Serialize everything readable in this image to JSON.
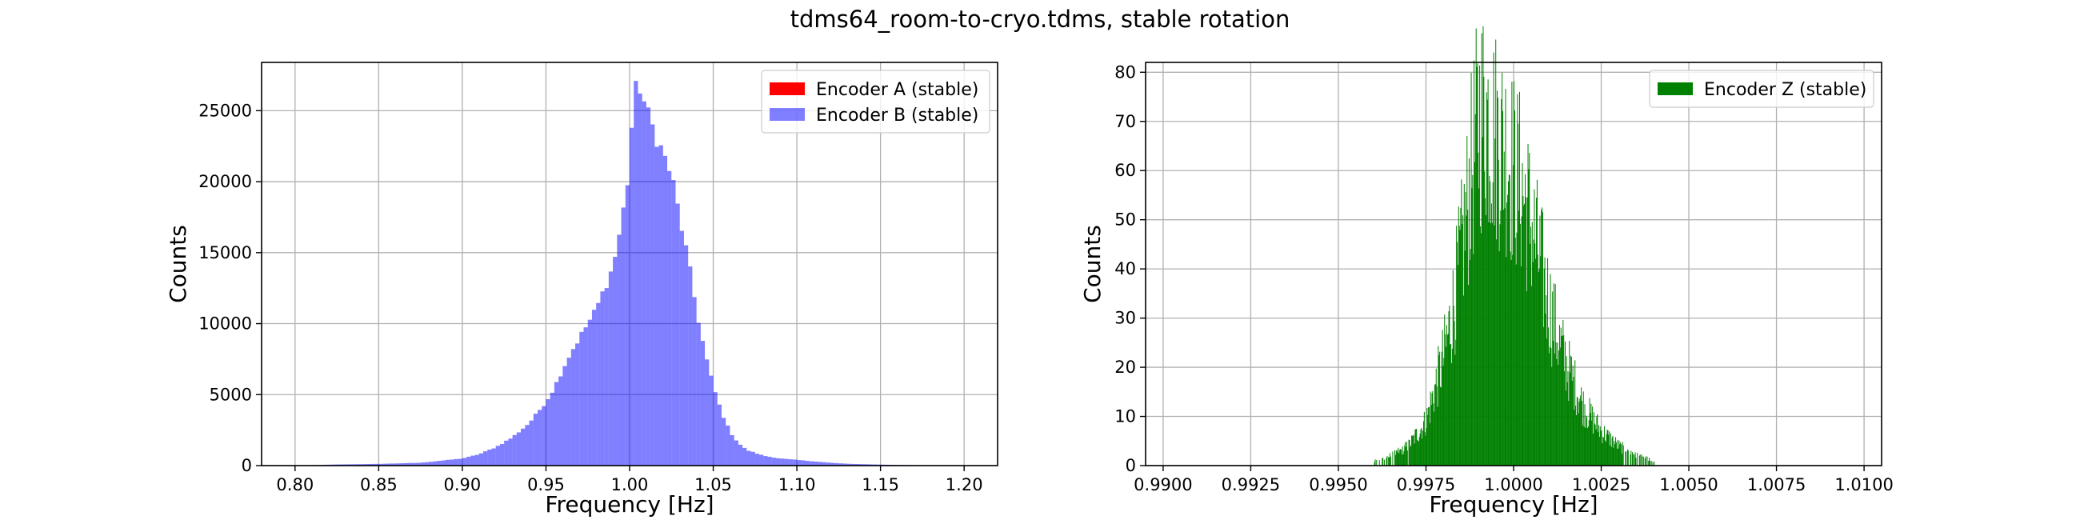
{
  "figure": {
    "title": "tdms64_room-to-cryo.tdms, stable rotation"
  },
  "chart_data": [
    {
      "type": "bar",
      "xlabel": "Frequency [Hz]",
      "ylabel": "Counts",
      "xlim": [
        0.78,
        1.22
      ],
      "ylim": [
        0,
        28400
      ],
      "xticks": [
        0.8,
        0.85,
        0.9,
        0.95,
        1.0,
        1.05,
        1.1,
        1.15,
        1.2
      ],
      "xtick_labels": [
        "0.80",
        "0.85",
        "0.90",
        "0.95",
        "1.00",
        "1.05",
        "1.10",
        "1.15",
        "1.20"
      ],
      "yticks": [
        0,
        5000,
        10000,
        15000,
        20000,
        25000
      ],
      "ytick_labels": [
        "0",
        "5000",
        "10000",
        "15000",
        "20000",
        "25000"
      ],
      "grid": true,
      "legend_position": "top-right",
      "bin_width": 0.0025,
      "series": [
        {
          "name": "Encoder A (stable)",
          "color": "#ff0000",
          "opacity": 1.0,
          "x": [],
          "values": []
        },
        {
          "name": "Encoder B (stable)",
          "color": "#0000ff",
          "opacity": 0.5,
          "x": [
            0.8,
            0.825,
            0.85,
            0.875,
            0.9,
            0.91,
            0.92,
            0.93,
            0.94,
            0.95,
            0.955,
            0.96,
            0.965,
            0.97,
            0.975,
            0.98,
            0.985,
            0.99,
            0.995,
            1.0,
            1.002,
            1.005,
            1.007,
            1.01,
            1.015,
            1.02,
            1.025,
            1.03,
            1.035,
            1.04,
            1.045,
            1.05,
            1.055,
            1.06,
            1.065,
            1.07,
            1.08,
            1.09,
            1.1,
            1.11,
            1.12,
            1.13,
            1.14,
            1.15,
            1.16,
            1.17,
            1.18,
            1.2
          ],
          "values": [
            0,
            80,
            120,
            200,
            500,
            800,
            1300,
            2000,
            3000,
            4500,
            5500,
            6800,
            8000,
            9000,
            10000,
            11000,
            12500,
            14000,
            17000,
            21000,
            25500,
            27000,
            26500,
            25000,
            23500,
            22000,
            20500,
            17500,
            14500,
            11000,
            8000,
            5600,
            3800,
            2400,
            1600,
            1100,
            700,
            500,
            400,
            300,
            200,
            130,
            100,
            70,
            50,
            30,
            20,
            0
          ]
        }
      ]
    },
    {
      "type": "bar",
      "xlabel": "Frequency [Hz]",
      "ylabel": "Counts",
      "xlim": [
        0.9895,
        1.0105
      ],
      "ylim": [
        0,
        82
      ],
      "xticks": [
        0.99,
        0.9925,
        0.995,
        0.9975,
        1.0,
        1.0025,
        1.005,
        1.0075,
        1.01
      ],
      "xtick_labels": [
        "0.9900",
        "0.9925",
        "0.9950",
        "0.9975",
        "1.0000",
        "1.0025",
        "1.0050",
        "1.0075",
        "1.0100"
      ],
      "yticks": [
        0,
        10,
        20,
        30,
        40,
        50,
        60,
        70,
        80
      ],
      "ytick_labels": [
        "0",
        "10",
        "20",
        "30",
        "40",
        "50",
        "60",
        "70",
        "80"
      ],
      "grid": true,
      "legend_position": "top-right",
      "bin_width": 2e-05,
      "series": [
        {
          "name": "Encoder Z (stable)",
          "color": "#008000",
          "opacity": 1.0,
          "x": [
            0.996,
            0.9965,
            0.997,
            0.9975,
            0.998,
            0.9983,
            0.9986,
            0.9988,
            0.999,
            0.9992,
            0.9994,
            0.9996,
            0.9998,
            1.0,
            1.0002,
            1.0004,
            1.0006,
            1.0008,
            1.001,
            1.0013,
            1.0016,
            1.002,
            1.0025,
            1.003,
            1.0035,
            1.004
          ],
          "values": [
            1,
            2,
            4,
            9,
            22,
            33,
            48,
            60,
            70,
            72,
            68,
            66,
            64,
            60,
            57,
            52,
            46,
            40,
            33,
            25,
            19,
            12,
            7,
            4,
            2,
            1
          ]
        }
      ]
    }
  ]
}
